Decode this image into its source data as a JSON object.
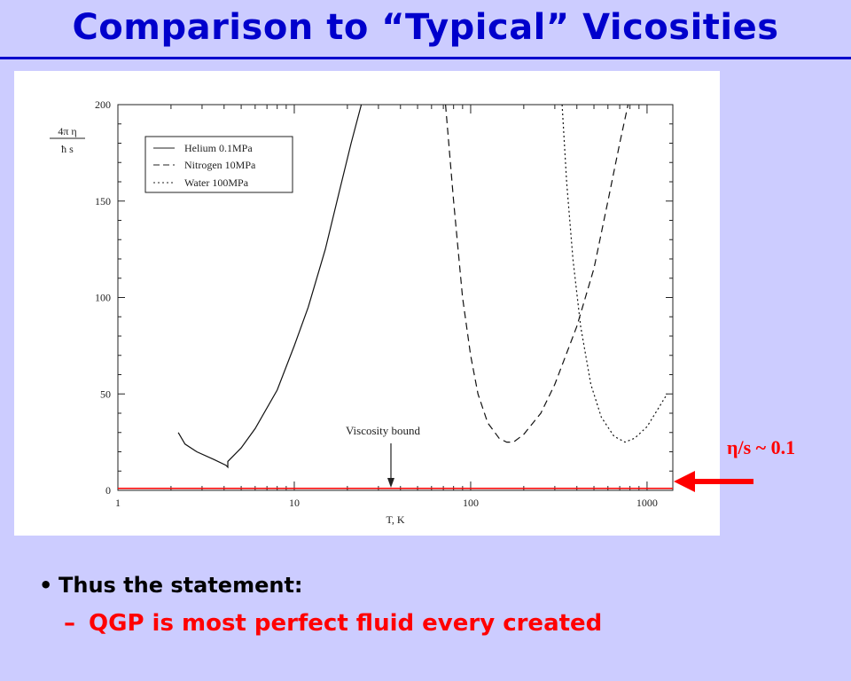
{
  "slide": {
    "title": "Comparison to “Typical” Vicosities",
    "eta_label": "η/s ~ 0.1",
    "bullet": "Thus the statement:",
    "sub_bullet": "QGP is most perfect fluid every created",
    "bullet_marker": "•",
    "sub_marker": "–"
  },
  "colors": {
    "title": "#0000cc",
    "background": "#ccccff",
    "accent_red": "#ff0000"
  },
  "chart_data": {
    "type": "line",
    "x_scale": "log",
    "xlim": [
      1,
      1400
    ],
    "ylim": [
      0,
      200
    ],
    "xlabel": "T, K",
    "ylabel_num": "4π η",
    "ylabel_den": "ħ s",
    "x_ticks": [
      1,
      10,
      100,
      1000
    ],
    "x_tick_labels": [
      "1",
      "10",
      "100",
      "1000"
    ],
    "y_ticks": [
      0,
      50,
      100,
      150,
      200
    ],
    "y_tick_labels": [
      "0",
      "50",
      "100",
      "150",
      "200"
    ],
    "legend_position": "top-left",
    "series": [
      {
        "name": "Helium 0.1MPa",
        "dash": "solid",
        "points": [
          [
            2.2,
            30
          ],
          [
            2.4,
            24
          ],
          [
            2.8,
            20
          ],
          [
            3.5,
            16
          ],
          [
            4.1,
            13
          ],
          [
            4.2,
            12
          ],
          [
            4.2,
            15
          ],
          [
            5,
            22
          ],
          [
            6,
            32
          ],
          [
            8,
            52
          ],
          [
            10,
            75
          ],
          [
            12,
            95
          ],
          [
            15,
            125
          ],
          [
            18,
            155
          ],
          [
            21,
            180
          ],
          [
            24,
            200
          ]
        ]
      },
      {
        "name": "Nitrogen 10MPa",
        "dash": "dashed",
        "points": [
          [
            72,
            200
          ],
          [
            80,
            150
          ],
          [
            90,
            100
          ],
          [
            100,
            70
          ],
          [
            110,
            50
          ],
          [
            125,
            35
          ],
          [
            145,
            27
          ],
          [
            160,
            25
          ],
          [
            175,
            25
          ],
          [
            200,
            29
          ],
          [
            250,
            40
          ],
          [
            300,
            55
          ],
          [
            400,
            85
          ],
          [
            500,
            115
          ],
          [
            600,
            150
          ],
          [
            700,
            180
          ],
          [
            780,
            200
          ]
        ]
      },
      {
        "name": "Water 100MPa",
        "dash": "dotted",
        "points": [
          [
            330,
            200
          ],
          [
            350,
            160
          ],
          [
            380,
            120
          ],
          [
            420,
            85
          ],
          [
            480,
            55
          ],
          [
            550,
            38
          ],
          [
            650,
            28
          ],
          [
            750,
            25
          ],
          [
            850,
            27
          ],
          [
            1000,
            33
          ],
          [
            1150,
            42
          ],
          [
            1300,
            50
          ]
        ]
      },
      {
        "name": "Viscosity bound",
        "dash": "solid",
        "points": [
          [
            1,
            1
          ],
          [
            1400,
            1
          ]
        ]
      }
    ],
    "annotations": [
      {
        "text": "Viscosity bound",
        "x": 38,
        "y": 1
      }
    ]
  }
}
